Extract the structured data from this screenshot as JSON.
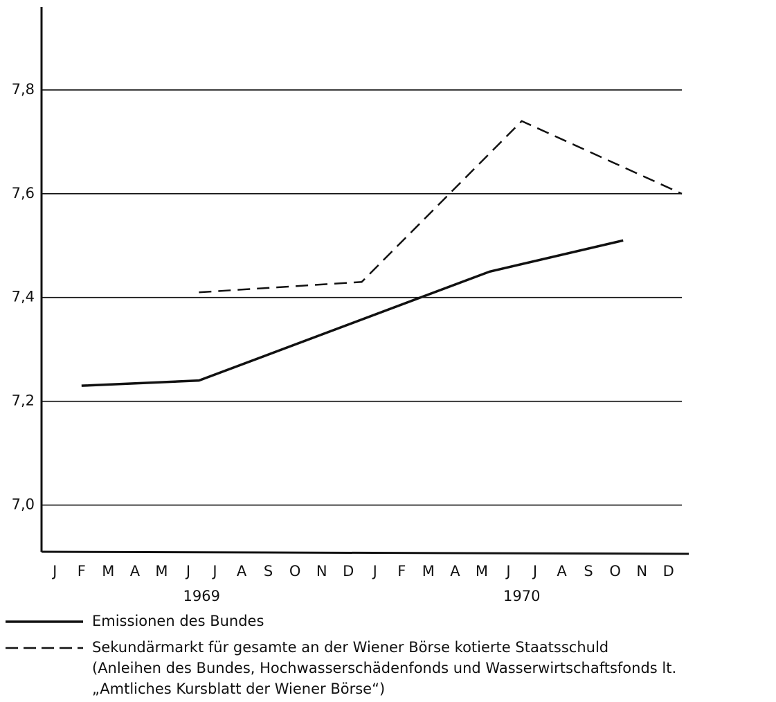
{
  "chart_data": {
    "type": "line",
    "categories": [
      "J",
      "F",
      "M",
      "A",
      "M",
      "J",
      "J",
      "A",
      "S",
      "O",
      "N",
      "D",
      "J",
      "F",
      "M",
      "A",
      "M",
      "J",
      "J",
      "A",
      "S",
      "O",
      "N",
      "D"
    ],
    "year_labels": [
      "1969",
      "1970"
    ],
    "series": [
      {
        "name": "Emissionen des Bundes",
        "color": "#111111",
        "style": "solid",
        "x": [
          1,
          5.4,
          16.3,
          21.3
        ],
        "values": [
          7.23,
          7.24,
          7.45,
          7.51
        ]
      },
      {
        "name": "Sekundärmarkt für gesamte an der Wiener Börse kotierte Staatsschuld",
        "color": "#111111",
        "style": "dashed",
        "x": [
          5.4,
          11.5,
          17.5,
          23.5
        ],
        "values": [
          7.41,
          7.43,
          7.74,
          7.6
        ]
      }
    ],
    "legend_note": [
      "(Anleihen des Bundes, Hochwasserschädenfonds und Wasserwirtschaftsfonds lt.",
      "„Amtliches Kursblatt der Wiener Börse“)"
    ],
    "xlim": [
      -0.5,
      23.5
    ],
    "ylim": [
      6.91,
      7.96
    ],
    "yticks": [
      {
        "value": 7.0,
        "label": "7,0"
      },
      {
        "value": 7.2,
        "label": "7,2"
      },
      {
        "value": 7.4,
        "label": "7,4"
      },
      {
        "value": 7.6,
        "label": "7,6"
      },
      {
        "value": 7.8,
        "label": "7,8"
      }
    ],
    "grid": true
  }
}
